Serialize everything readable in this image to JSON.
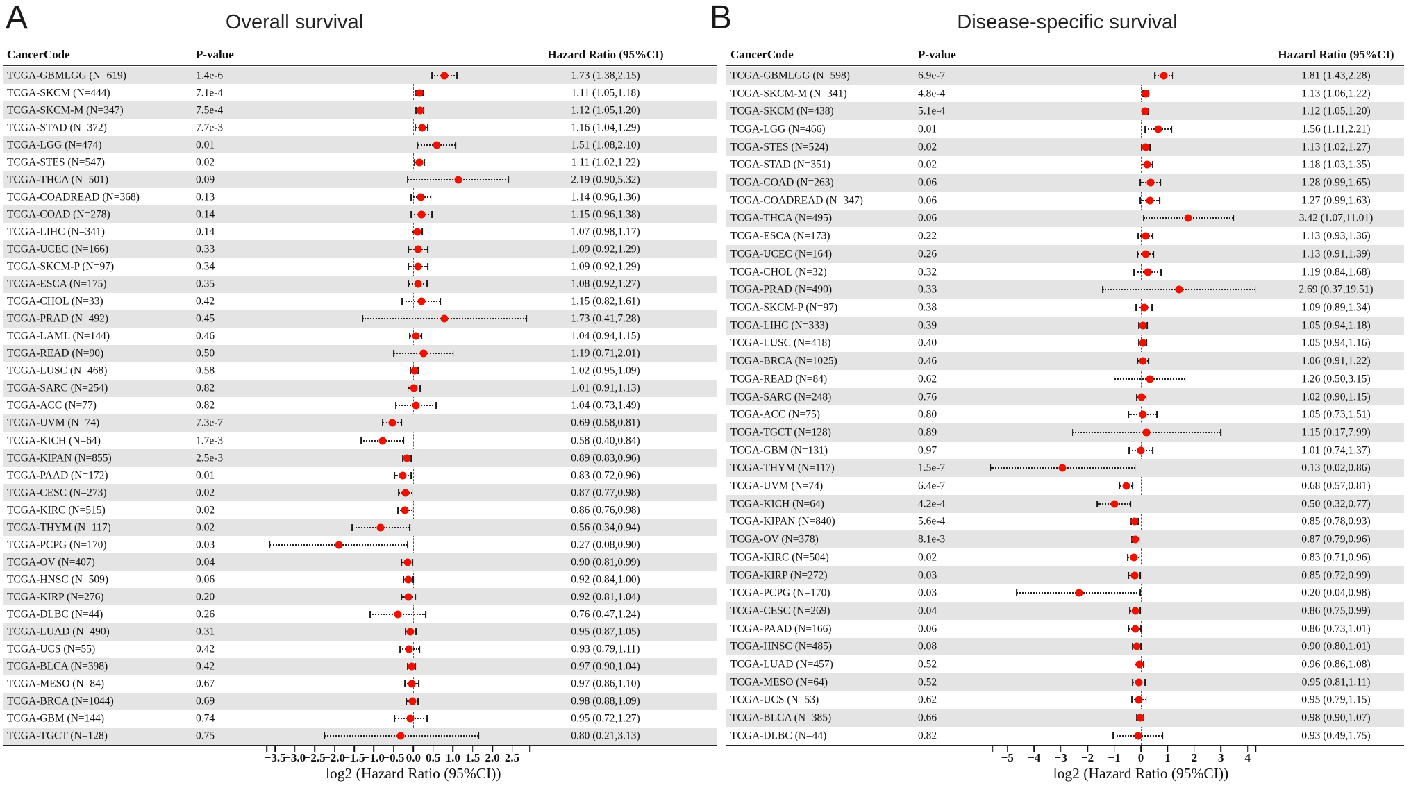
{
  "colors": {
    "dot_red": "#ee1100",
    "row_alt_gray": "#e4e4e4",
    "whisker_black": "#1a1a1a",
    "zero_line_gray": "#555555"
  },
  "chart_data": [
    {
      "type": "forest",
      "panel_label": "A",
      "title": "Overall survival",
      "columns": [
        "CancerCode",
        "P-value",
        "Hazard Ratio (95%CI)"
      ],
      "xlabel": "log2 (Hazard Ratio (95%CI))",
      "axis": {
        "scale": "log2",
        "range": [
          -3.75,
          3.0
        ],
        "ticks": [
          {
            "v": -3.71,
            "label": ""
          },
          {
            "v": -3.5,
            "label": "−3.5"
          },
          {
            "v": -3.0,
            "label": "−3.0"
          },
          {
            "v": -2.5,
            "label": "−2.5"
          },
          {
            "v": -2.0,
            "label": "−2.0"
          },
          {
            "v": -1.5,
            "label": "−1.5"
          },
          {
            "v": -1.0,
            "label": "−1.0"
          },
          {
            "v": -0.5,
            "label": "−0.5"
          },
          {
            "v": 0.0,
            "label": "0.0"
          },
          {
            "v": 0.5,
            "label": "0.5"
          },
          {
            "v": 1.0,
            "label": "1.0"
          },
          {
            "v": 1.5,
            "label": "1.5"
          },
          {
            "v": 2.0,
            "label": "2.0"
          },
          {
            "v": 2.5,
            "label": "2.5"
          },
          {
            "v": 2.94,
            "label": ""
          }
        ]
      },
      "rows": [
        {
          "code": "TCGA-GBMLGG (N=619)",
          "p": "1.4e-6",
          "hr_text": "1.73 (1.38,2.15)",
          "hr": 1.73,
          "lo": 1.38,
          "hi": 2.15
        },
        {
          "code": "TCGA-SKCM (N=444)",
          "p": "7.1e-4",
          "hr_text": "1.11 (1.05,1.18)",
          "hr": 1.11,
          "lo": 1.05,
          "hi": 1.18
        },
        {
          "code": "TCGA-SKCM-M (N=347)",
          "p": "7.5e-4",
          "hr_text": "1.12 (1.05,1.20)",
          "hr": 1.12,
          "lo": 1.05,
          "hi": 1.2
        },
        {
          "code": "TCGA-STAD (N=372)",
          "p": "7.7e-3",
          "hr_text": "1.16 (1.04,1.29)",
          "hr": 1.16,
          "lo": 1.04,
          "hi": 1.29
        },
        {
          "code": "TCGA-LGG (N=474)",
          "p": "0.01",
          "hr_text": "1.51 (1.08,2.10)",
          "hr": 1.51,
          "lo": 1.08,
          "hi": 2.1
        },
        {
          "code": "TCGA-STES (N=547)",
          "p": "0.02",
          "hr_text": "1.11 (1.02,1.22)",
          "hr": 1.11,
          "lo": 1.02,
          "hi": 1.22
        },
        {
          "code": "TCGA-THCA (N=501)",
          "p": "0.09",
          "hr_text": "2.19 (0.90,5.32)",
          "hr": 2.19,
          "lo": 0.9,
          "hi": 5.32
        },
        {
          "code": "TCGA-COADREAD (N=368)",
          "p": "0.13",
          "hr_text": "1.14 (0.96,1.36)",
          "hr": 1.14,
          "lo": 0.96,
          "hi": 1.36
        },
        {
          "code": "TCGA-COAD (N=278)",
          "p": "0.14",
          "hr_text": "1.15 (0.96,1.38)",
          "hr": 1.15,
          "lo": 0.96,
          "hi": 1.38
        },
        {
          "code": "TCGA-LIHC (N=341)",
          "p": "0.14",
          "hr_text": "1.07 (0.98,1.17)",
          "hr": 1.07,
          "lo": 0.98,
          "hi": 1.17
        },
        {
          "code": "TCGA-UCEC (N=166)",
          "p": "0.33",
          "hr_text": "1.09 (0.92,1.29)",
          "hr": 1.09,
          "lo": 0.92,
          "hi": 1.29
        },
        {
          "code": "TCGA-SKCM-P (N=97)",
          "p": "0.34",
          "hr_text": "1.09 (0.92,1.29)",
          "hr": 1.09,
          "lo": 0.92,
          "hi": 1.29
        },
        {
          "code": "TCGA-ESCA (N=175)",
          "p": "0.35",
          "hr_text": "1.08 (0.92,1.27)",
          "hr": 1.08,
          "lo": 0.92,
          "hi": 1.27
        },
        {
          "code": "TCGA-CHOL (N=33)",
          "p": "0.42",
          "hr_text": "1.15 (0.82,1.61)",
          "hr": 1.15,
          "lo": 0.82,
          "hi": 1.61
        },
        {
          "code": "TCGA-PRAD (N=492)",
          "p": "0.45",
          "hr_text": "1.73 (0.41,7.28)",
          "hr": 1.73,
          "lo": 0.41,
          "hi": 7.28
        },
        {
          "code": "TCGA-LAML (N=144)",
          "p": "0.46",
          "hr_text": "1.04 (0.94,1.15)",
          "hr": 1.04,
          "lo": 0.94,
          "hi": 1.15
        },
        {
          "code": "TCGA-READ (N=90)",
          "p": "0.50",
          "hr_text": "1.19 (0.71,2.01)",
          "hr": 1.19,
          "lo": 0.71,
          "hi": 2.01
        },
        {
          "code": "TCGA-LUSC (N=468)",
          "p": "0.58",
          "hr_text": "1.02 (0.95,1.09)",
          "hr": 1.02,
          "lo": 0.95,
          "hi": 1.09
        },
        {
          "code": "TCGA-SARC (N=254)",
          "p": "0.82",
          "hr_text": "1.01 (0.91,1.13)",
          "hr": 1.01,
          "lo": 0.91,
          "hi": 1.13
        },
        {
          "code": "TCGA-ACC (N=77)",
          "p": "0.82",
          "hr_text": "1.04 (0.73,1.49)",
          "hr": 1.04,
          "lo": 0.73,
          "hi": 1.49
        },
        {
          "code": "TCGA-UVM (N=74)",
          "p": "7.3e-7",
          "hr_text": "0.69 (0.58,0.81)",
          "hr": 0.69,
          "lo": 0.58,
          "hi": 0.81
        },
        {
          "code": "TCGA-KICH (N=64)",
          "p": "1.7e-3",
          "hr_text": "0.58 (0.40,0.84)",
          "hr": 0.58,
          "lo": 0.4,
          "hi": 0.84
        },
        {
          "code": "TCGA-KIPAN (N=855)",
          "p": "2.5e-3",
          "hr_text": "0.89 (0.83,0.96)",
          "hr": 0.89,
          "lo": 0.83,
          "hi": 0.96
        },
        {
          "code": "TCGA-PAAD (N=172)",
          "p": "0.01",
          "hr_text": "0.83 (0.72,0.96)",
          "hr": 0.83,
          "lo": 0.72,
          "hi": 0.96
        },
        {
          "code": "TCGA-CESC (N=273)",
          "p": "0.02",
          "hr_text": "0.87 (0.77,0.98)",
          "hr": 0.87,
          "lo": 0.77,
          "hi": 0.98
        },
        {
          "code": "TCGA-KIRC (N=515)",
          "p": "0.02",
          "hr_text": "0.86 (0.76,0.98)",
          "hr": 0.86,
          "lo": 0.76,
          "hi": 0.98
        },
        {
          "code": "TCGA-THYM (N=117)",
          "p": "0.02",
          "hr_text": "0.56 (0.34,0.94)",
          "hr": 0.56,
          "lo": 0.34,
          "hi": 0.94
        },
        {
          "code": "TCGA-PCPG (N=170)",
          "p": "0.03",
          "hr_text": "0.27 (0.08,0.90)",
          "hr": 0.27,
          "lo": 0.08,
          "hi": 0.9
        },
        {
          "code": "TCGA-OV (N=407)",
          "p": "0.04",
          "hr_text": "0.90 (0.81,0.99)",
          "hr": 0.9,
          "lo": 0.81,
          "hi": 0.99
        },
        {
          "code": "TCGA-HNSC (N=509)",
          "p": "0.06",
          "hr_text": "0.92 (0.84,1.00)",
          "hr": 0.92,
          "lo": 0.84,
          "hi": 1.0
        },
        {
          "code": "TCGA-KIRP (N=276)",
          "p": "0.20",
          "hr_text": "0.92 (0.81,1.04)",
          "hr": 0.92,
          "lo": 0.81,
          "hi": 1.04
        },
        {
          "code": "TCGA-DLBC (N=44)",
          "p": "0.26",
          "hr_text": "0.76 (0.47,1.24)",
          "hr": 0.76,
          "lo": 0.47,
          "hi": 1.24
        },
        {
          "code": "TCGA-LUAD (N=490)",
          "p": "0.31",
          "hr_text": "0.95 (0.87,1.05)",
          "hr": 0.95,
          "lo": 0.87,
          "hi": 1.05
        },
        {
          "code": "TCGA-UCS (N=55)",
          "p": "0.42",
          "hr_text": "0.93 (0.79,1.11)",
          "hr": 0.93,
          "lo": 0.79,
          "hi": 1.11
        },
        {
          "code": "TCGA-BLCA (N=398)",
          "p": "0.42",
          "hr_text": "0.97 (0.90,1.04)",
          "hr": 0.97,
          "lo": 0.9,
          "hi": 1.04
        },
        {
          "code": "TCGA-MESO (N=84)",
          "p": "0.67",
          "hr_text": "0.97 (0.86,1.10)",
          "hr": 0.97,
          "lo": 0.86,
          "hi": 1.1
        },
        {
          "code": "TCGA-BRCA (N=1044)",
          "p": "0.69",
          "hr_text": "0.98 (0.88,1.09)",
          "hr": 0.98,
          "lo": 0.88,
          "hi": 1.09
        },
        {
          "code": "TCGA-GBM (N=144)",
          "p": "0.74",
          "hr_text": "0.95 (0.72,1.27)",
          "hr": 0.95,
          "lo": 0.72,
          "hi": 1.27
        },
        {
          "code": "TCGA-TGCT (N=128)",
          "p": "0.75",
          "hr_text": "0.80 (0.21,3.13)",
          "hr": 0.8,
          "lo": 0.21,
          "hi": 3.13
        }
      ]
    },
    {
      "type": "forest",
      "panel_label": "B",
      "title": "Disease-specific survival",
      "columns": [
        "CancerCode",
        "P-value",
        "Hazard Ratio (95%CI)"
      ],
      "xlabel": "log2 (Hazard Ratio (95%CI))",
      "axis": {
        "scale": "log2",
        "range": [
          -5.8,
          4.45
        ],
        "ticks": [
          {
            "v": -5.55,
            "label": ""
          },
          {
            "v": -5,
            "label": "−5"
          },
          {
            "v": -4,
            "label": "−4"
          },
          {
            "v": -3,
            "label": "−3"
          },
          {
            "v": -2,
            "label": "−2"
          },
          {
            "v": -1,
            "label": "−1"
          },
          {
            "v": 0,
            "label": "0"
          },
          {
            "v": 1,
            "label": "1"
          },
          {
            "v": 2,
            "label": "2"
          },
          {
            "v": 3,
            "label": "3"
          },
          {
            "v": 4,
            "label": "4"
          },
          {
            "v": 4.3,
            "label": ""
          }
        ]
      },
      "rows": [
        {
          "code": "TCGA-GBMLGG (N=598)",
          "p": "6.9e-7",
          "hr_text": "1.81 (1.43,2.28)",
          "hr": 1.81,
          "lo": 1.43,
          "hi": 2.28
        },
        {
          "code": "TCGA-SKCM-M (N=341)",
          "p": "4.8e-4",
          "hr_text": "1.13 (1.06,1.22)",
          "hr": 1.13,
          "lo": 1.06,
          "hi": 1.22
        },
        {
          "code": "TCGA-SKCM (N=438)",
          "p": "5.1e-4",
          "hr_text": "1.12 (1.05,1.20)",
          "hr": 1.12,
          "lo": 1.05,
          "hi": 1.2
        },
        {
          "code": "TCGA-LGG (N=466)",
          "p": "0.01",
          "hr_text": "1.56 (1.11,2.21)",
          "hr": 1.56,
          "lo": 1.11,
          "hi": 2.21
        },
        {
          "code": "TCGA-STES (N=524)",
          "p": "0.02",
          "hr_text": "1.13 (1.02,1.27)",
          "hr": 1.13,
          "lo": 1.02,
          "hi": 1.27
        },
        {
          "code": "TCGA-STAD (N=351)",
          "p": "0.02",
          "hr_text": "1.18 (1.03,1.35)",
          "hr": 1.18,
          "lo": 1.03,
          "hi": 1.35
        },
        {
          "code": "TCGA-COAD (N=263)",
          "p": "0.06",
          "hr_text": "1.28 (0.99,1.65)",
          "hr": 1.28,
          "lo": 0.99,
          "hi": 1.65
        },
        {
          "code": "TCGA-COADREAD (N=347)",
          "p": "0.06",
          "hr_text": "1.27 (0.99,1.63)",
          "hr": 1.27,
          "lo": 0.99,
          "hi": 1.63
        },
        {
          "code": "TCGA-THCA (N=495)",
          "p": "0.06",
          "hr_text": "3.42 (1.07,11.01)",
          "hr": 3.42,
          "lo": 1.07,
          "hi": 11.01
        },
        {
          "code": "TCGA-ESCA (N=173)",
          "p": "0.22",
          "hr_text": "1.13 (0.93,1.36)",
          "hr": 1.13,
          "lo": 0.93,
          "hi": 1.36
        },
        {
          "code": "TCGA-UCEC (N=164)",
          "p": "0.26",
          "hr_text": "1.13 (0.91,1.39)",
          "hr": 1.13,
          "lo": 0.91,
          "hi": 1.39
        },
        {
          "code": "TCGA-CHOL (N=32)",
          "p": "0.32",
          "hr_text": "1.19 (0.84,1.68)",
          "hr": 1.19,
          "lo": 0.84,
          "hi": 1.68
        },
        {
          "code": "TCGA-PRAD (N=490)",
          "p": "0.33",
          "hr_text": "2.69 (0.37,19.51)",
          "hr": 2.69,
          "lo": 0.37,
          "hi": 19.51
        },
        {
          "code": "TCGA-SKCM-P (N=97)",
          "p": "0.38",
          "hr_text": "1.09 (0.89,1.34)",
          "hr": 1.09,
          "lo": 0.89,
          "hi": 1.34
        },
        {
          "code": "TCGA-LIHC (N=333)",
          "p": "0.39",
          "hr_text": "1.05 (0.94,1.18)",
          "hr": 1.05,
          "lo": 0.94,
          "hi": 1.18
        },
        {
          "code": "TCGA-LUSC (N=418)",
          "p": "0.40",
          "hr_text": "1.05 (0.94,1.16)",
          "hr": 1.05,
          "lo": 0.94,
          "hi": 1.16
        },
        {
          "code": "TCGA-BRCA (N=1025)",
          "p": "0.46",
          "hr_text": "1.06 (0.91,1.22)",
          "hr": 1.06,
          "lo": 0.91,
          "hi": 1.22
        },
        {
          "code": "TCGA-READ (N=84)",
          "p": "0.62",
          "hr_text": "1.26 (0.50,3.15)",
          "hr": 1.26,
          "lo": 0.5,
          "hi": 3.15
        },
        {
          "code": "TCGA-SARC (N=248)",
          "p": "0.76",
          "hr_text": "1.02 (0.90,1.15)",
          "hr": 1.02,
          "lo": 0.9,
          "hi": 1.15
        },
        {
          "code": "TCGA-ACC (N=75)",
          "p": "0.80",
          "hr_text": "1.05 (0.73,1.51)",
          "hr": 1.05,
          "lo": 0.73,
          "hi": 1.51
        },
        {
          "code": "TCGA-TGCT (N=128)",
          "p": "0.89",
          "hr_text": "1.15 (0.17,7.99)",
          "hr": 1.15,
          "lo": 0.17,
          "hi": 7.99
        },
        {
          "code": "TCGA-GBM (N=131)",
          "p": "0.97",
          "hr_text": "1.01 (0.74,1.37)",
          "hr": 1.01,
          "lo": 0.74,
          "hi": 1.37
        },
        {
          "code": "TCGA-THYM (N=117)",
          "p": "1.5e-7",
          "hr_text": "0.13 (0.02,0.86)",
          "hr": 0.13,
          "lo": 0.02,
          "hi": 0.86
        },
        {
          "code": "TCGA-UVM (N=74)",
          "p": "6.4e-7",
          "hr_text": "0.68 (0.57,0.81)",
          "hr": 0.68,
          "lo": 0.57,
          "hi": 0.81
        },
        {
          "code": "TCGA-KICH (N=64)",
          "p": "4.2e-4",
          "hr_text": "0.50 (0.32,0.77)",
          "hr": 0.5,
          "lo": 0.32,
          "hi": 0.77
        },
        {
          "code": "TCGA-KIPAN (N=840)",
          "p": "5.6e-4",
          "hr_text": "0.85 (0.78,0.93)",
          "hr": 0.85,
          "lo": 0.78,
          "hi": 0.93
        },
        {
          "code": "TCGA-OV (N=378)",
          "p": "8.1e-3",
          "hr_text": "0.87 (0.79,0.96)",
          "hr": 0.87,
          "lo": 0.79,
          "hi": 0.96
        },
        {
          "code": "TCGA-KIRC (N=504)",
          "p": "0.02",
          "hr_text": "0.83 (0.71,0.96)",
          "hr": 0.83,
          "lo": 0.71,
          "hi": 0.96
        },
        {
          "code": "TCGA-KIRP (N=272)",
          "p": "0.03",
          "hr_text": "0.85 (0.72,0.99)",
          "hr": 0.85,
          "lo": 0.72,
          "hi": 0.99
        },
        {
          "code": "TCGA-PCPG (N=170)",
          "p": "0.03",
          "hr_text": "0.20 (0.04,0.98)",
          "hr": 0.2,
          "lo": 0.04,
          "hi": 0.98
        },
        {
          "code": "TCGA-CESC (N=269)",
          "p": "0.04",
          "hr_text": "0.86 (0.75,0.99)",
          "hr": 0.86,
          "lo": 0.75,
          "hi": 0.99
        },
        {
          "code": "TCGA-PAAD (N=166)",
          "p": "0.06",
          "hr_text": "0.86 (0.73,1.01)",
          "hr": 0.86,
          "lo": 0.73,
          "hi": 1.01
        },
        {
          "code": "TCGA-HNSC (N=485)",
          "p": "0.08",
          "hr_text": "0.90 (0.80,1.01)",
          "hr": 0.9,
          "lo": 0.8,
          "hi": 1.01
        },
        {
          "code": "TCGA-LUAD (N=457)",
          "p": "0.52",
          "hr_text": "0.96 (0.86,1.08)",
          "hr": 0.96,
          "lo": 0.86,
          "hi": 1.08
        },
        {
          "code": "TCGA-MESO (N=64)",
          "p": "0.52",
          "hr_text": "0.95 (0.81,1.11)",
          "hr": 0.95,
          "lo": 0.81,
          "hi": 1.11
        },
        {
          "code": "TCGA-UCS (N=53)",
          "p": "0.62",
          "hr_text": "0.95 (0.79,1.15)",
          "hr": 0.95,
          "lo": 0.79,
          "hi": 1.15
        },
        {
          "code": "TCGA-BLCA (N=385)",
          "p": "0.66",
          "hr_text": "0.98 (0.90,1.07)",
          "hr": 0.98,
          "lo": 0.9,
          "hi": 1.07
        },
        {
          "code": "TCGA-DLBC (N=44)",
          "p": "0.82",
          "hr_text": "0.93 (0.49,1.75)",
          "hr": 0.93,
          "lo": 0.49,
          "hi": 1.75
        }
      ]
    }
  ]
}
